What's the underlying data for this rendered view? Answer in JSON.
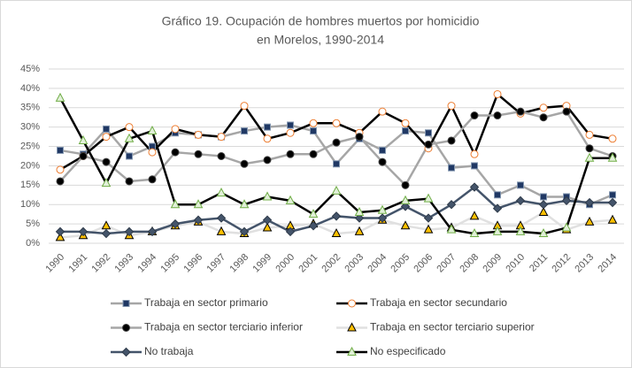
{
  "chart_data": {
    "type": "line",
    "title": [
      "Gráfico 19. Ocupación de hombres muertos por homicidio",
      "en Morelos, 1990-2014"
    ],
    "categories": [
      "1990",
      "1991",
      "1992",
      "1993",
      "1994",
      "1995",
      "1996",
      "1997",
      "1998",
      "1999",
      "2000",
      "2001",
      "2002",
      "2003",
      "2004",
      "2005",
      "2006",
      "2007",
      "2008",
      "2009",
      "2010",
      "2011",
      "2012",
      "2013",
      "2014"
    ],
    "ylim": [
      0,
      45
    ],
    "yticks": [
      {
        "value": 0,
        "label": "0%"
      },
      {
        "value": 5,
        "label": "5%"
      },
      {
        "value": 10,
        "label": "10%"
      },
      {
        "value": 15,
        "label": "15%"
      },
      {
        "value": 20,
        "label": "20%"
      },
      {
        "value": 25,
        "label": "25%"
      },
      {
        "value": 30,
        "label": "30%"
      },
      {
        "value": 35,
        "label": "35%"
      },
      {
        "value": 40,
        "label": "40%"
      },
      {
        "value": 45,
        "label": "45%"
      }
    ],
    "grid": true,
    "legend": "bottom",
    "series": [
      {
        "name": "Trabaja en sector primario",
        "color": "#a6a6a6",
        "marker": "square",
        "marker_fill": "#203864",
        "marker_stroke": "#8497b0",
        "values": [
          24,
          23,
          29.5,
          22.5,
          25,
          28.5,
          28,
          27.5,
          29,
          30,
          30.5,
          29,
          20.5,
          27,
          24,
          29,
          28.5,
          19.5,
          20,
          12.5,
          15,
          12,
          12,
          10,
          12.5
        ]
      },
      {
        "name": "Trabaja en sector secundario",
        "color": "#000000",
        "marker": "circle",
        "marker_fill": "#ffffff",
        "marker_stroke": "#ed7d31",
        "values": [
          19,
          22.5,
          27.5,
          30,
          23.5,
          29.5,
          28,
          27.5,
          35.5,
          27,
          28.5,
          31,
          31,
          28.5,
          34,
          31,
          24.5,
          35.5,
          23,
          38.5,
          33.5,
          35,
          35.5,
          28,
          27
        ]
      },
      {
        "name": "Trabaja en sector terciario inferior",
        "color": "#a6a6a6",
        "marker": "circle",
        "marker_fill": "#000000",
        "marker_stroke": "#404040",
        "values": [
          16,
          22.5,
          21,
          16,
          16.5,
          23.5,
          23,
          22.5,
          20.5,
          21.5,
          23,
          23,
          26,
          27.5,
          21,
          15,
          25.5,
          26.5,
          33,
          33,
          34,
          32.5,
          34,
          24.5,
          22.5
        ]
      },
      {
        "name": "Trabaja en sector terciario superior",
        "color": "#e0e0e0",
        "marker": "triangle",
        "marker_fill": "#ffc000",
        "marker_stroke": "#000000",
        "values": [
          1.5,
          2,
          4.5,
          2,
          3,
          4.5,
          5.5,
          3,
          2.5,
          4,
          4.5,
          5,
          2.5,
          3,
          6,
          4.5,
          3.5,
          4,
          7,
          4.5,
          4.5,
          8,
          3.5,
          5.5,
          6
        ]
      },
      {
        "name": "No trabaja",
        "color": "#44546a",
        "marker": "diamond",
        "marker_fill": "#44546a",
        "marker_stroke": "#2f3b4a",
        "values": [
          3,
          3,
          2.5,
          3,
          3,
          5,
          6,
          6.5,
          3,
          6,
          3,
          4.5,
          7,
          6.5,
          6.5,
          9.5,
          6.5,
          10,
          14.5,
          9,
          11,
          10,
          11,
          10.5,
          10.5
        ]
      },
      {
        "name": "No especificado",
        "color": "#000000",
        "marker": "triangle",
        "marker_fill": "#e2f0d9",
        "marker_stroke": "#70ad47",
        "values": [
          37.5,
          26.5,
          15.5,
          27,
          29,
          10,
          10,
          13,
          10,
          12,
          11,
          7.5,
          13.5,
          8,
          8.5,
          11,
          11.5,
          3.5,
          2.5,
          3,
          3,
          2.5,
          4,
          22,
          22
        ]
      }
    ]
  }
}
